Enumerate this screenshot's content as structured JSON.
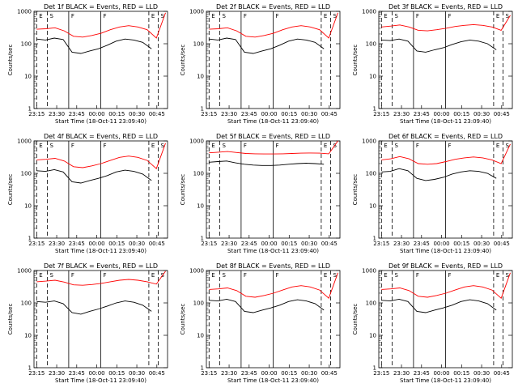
{
  "figure": {
    "xlabel": "Start Time (18-Oct-11 23:09:40)",
    "ylabel": "Counts/sec"
  },
  "chart_data": [
    {
      "type": "line",
      "title": "Det 1f BLACK = Events, RED = LLD",
      "xlabel": "Start Time (18-Oct-11 23:09:40)",
      "ylabel": "Counts/sec",
      "scale_y": "log",
      "ylim": [
        1,
        1000
      ],
      "x_ticks": [
        "23:15",
        "23:30",
        "23:45",
        "00:00",
        "00:15",
        "00:30",
        "00:45"
      ],
      "y_ticks": [
        "1",
        "10",
        "100",
        "1000"
      ],
      "series": [
        {
          "name": "Events",
          "color": "#000000",
          "values": [
            140,
            130,
            150,
            135,
            55,
            50,
            60,
            70,
            90,
            120,
            140,
            130,
            110,
            70
          ]
        },
        {
          "name": "LLD",
          "color": "#ff0000",
          "values": [
            280,
            290,
            310,
            250,
            170,
            160,
            180,
            210,
            270,
            330,
            360,
            330,
            270,
            150,
            900
          ]
        }
      ],
      "markers": [
        {
          "label": "E",
          "style": "dashed"
        },
        {
          "label": "S",
          "style": "dashed"
        },
        {
          "label": "F",
          "style": "solid"
        },
        {
          "label": "F",
          "style": "solid"
        },
        {
          "label": "E",
          "style": "dashed"
        },
        {
          "label": "S",
          "style": "dashed"
        }
      ]
    },
    {
      "type": "line",
      "title": "Det 2f BLACK = Events, RED = LLD",
      "xlabel": "Start Time (18-Oct-11 23:09:40)",
      "ylabel": "Counts/sec",
      "scale_y": "log",
      "ylim": [
        1,
        1000
      ],
      "x_ticks": [
        "23:15",
        "23:30",
        "23:45",
        "00:00",
        "00:15",
        "00:30",
        "00:45"
      ],
      "y_ticks": [
        "1",
        "10",
        "100",
        "1000"
      ],
      "series": [
        {
          "name": "Events",
          "color": "#000000",
          "values": [
            140,
            130,
            150,
            135,
            55,
            50,
            60,
            70,
            90,
            120,
            140,
            130,
            110,
            70
          ]
        },
        {
          "name": "LLD",
          "color": "#ff0000",
          "values": [
            280,
            290,
            310,
            250,
            170,
            160,
            180,
            210,
            270,
            330,
            360,
            330,
            270,
            150,
            900
          ]
        }
      ],
      "markers": [
        {
          "label": "E",
          "style": "dashed"
        },
        {
          "label": "S",
          "style": "dashed"
        },
        {
          "label": "F",
          "style": "solid"
        },
        {
          "label": "F",
          "style": "solid"
        },
        {
          "label": "E",
          "style": "dashed"
        },
        {
          "label": "S",
          "style": "dashed"
        }
      ]
    },
    {
      "type": "line",
      "title": "Det 3f BLACK = Events, RED = LLD",
      "xlabel": "Start Time (18-Oct-11 23:09:40)",
      "ylabel": "Counts/sec",
      "scale_y": "log",
      "ylim": [
        1,
        1000
      ],
      "x_ticks": [
        "23:15",
        "23:30",
        "23:45",
        "00:00",
        "00:15",
        "00:30",
        "00:45"
      ],
      "y_ticks": [
        "1",
        "10",
        "100",
        "1000"
      ],
      "series": [
        {
          "name": "Events",
          "color": "#000000",
          "values": [
            130,
            125,
            140,
            120,
            60,
            55,
            65,
            75,
            95,
            115,
            130,
            120,
            100,
            65
          ]
        },
        {
          "name": "LLD",
          "color": "#ff0000",
          "values": [
            330,
            350,
            380,
            330,
            260,
            250,
            270,
            300,
            340,
            370,
            390,
            370,
            330,
            260,
            750
          ]
        }
      ],
      "markers": [
        {
          "label": "E",
          "style": "dashed"
        },
        {
          "label": "S",
          "style": "dashed"
        },
        {
          "label": "F",
          "style": "solid"
        },
        {
          "label": "F",
          "style": "solid"
        },
        {
          "label": "E",
          "style": "dashed"
        },
        {
          "label": "S",
          "style": "dashed"
        }
      ]
    },
    {
      "type": "line",
      "title": "Det 4f BLACK = Events, RED = LLD",
      "xlabel": "Start Time (18-Oct-11 23:09:40)",
      "ylabel": "Counts/sec",
      "scale_y": "log",
      "ylim": [
        1,
        1000
      ],
      "x_ticks": [
        "23:15",
        "23:30",
        "23:45",
        "00:00",
        "00:15",
        "00:30",
        "00:45"
      ],
      "y_ticks": [
        "1",
        "10",
        "100",
        "1000"
      ],
      "series": [
        {
          "name": "Events",
          "color": "#000000",
          "values": [
            120,
            115,
            130,
            110,
            55,
            50,
            60,
            70,
            85,
            110,
            125,
            115,
            95,
            60
          ]
        },
        {
          "name": "LLD",
          "color": "#ff0000",
          "values": [
            260,
            270,
            290,
            240,
            160,
            150,
            170,
            200,
            250,
            310,
            340,
            310,
            250,
            140,
            850
          ]
        }
      ],
      "markers": [
        {
          "label": "E",
          "style": "dashed"
        },
        {
          "label": "S",
          "style": "dashed"
        },
        {
          "label": "F",
          "style": "solid"
        },
        {
          "label": "F",
          "style": "solid"
        },
        {
          "label": "E",
          "style": "dashed"
        },
        {
          "label": "S",
          "style": "dashed"
        }
      ]
    },
    {
      "type": "line",
      "title": "Det 5f BLACK = Events, RED = LLD",
      "xlabel": "Start Time (18-Oct-11 23:09:40)",
      "ylabel": "Counts/sec",
      "scale_y": "log",
      "ylim": [
        1,
        1000
      ],
      "x_ticks": [
        "23:15",
        "23:30",
        "23:45",
        "00:00",
        "00:15",
        "00:30",
        "00:45"
      ],
      "y_ticks": [
        "1",
        "10",
        "100",
        "1000"
      ],
      "series": [
        {
          "name": "Events",
          "color": "#000000",
          "values": [
            220,
            230,
            240,
            210,
            190,
            180,
            175,
            175,
            180,
            190,
            200,
            205,
            200,
            190
          ]
        },
        {
          "name": "LLD",
          "color": "#ff0000",
          "values": [
            430,
            450,
            470,
            440,
            410,
            400,
            395,
            395,
            400,
            410,
            420,
            425,
            420,
            400,
            1000
          ]
        }
      ],
      "markers": [
        {
          "label": "E",
          "style": "dashed"
        },
        {
          "label": "S",
          "style": "dashed"
        },
        {
          "label": "F",
          "style": "solid"
        },
        {
          "label": "F",
          "style": "solid"
        },
        {
          "label": "E",
          "style": "dashed"
        },
        {
          "label": "S",
          "style": "dashed"
        }
      ]
    },
    {
      "type": "line",
      "title": "Det 6f BLACK = Events, RED = LLD",
      "xlabel": "Start Time (18-Oct-11 23:09:40)",
      "ylabel": "Counts/sec",
      "scale_y": "log",
      "ylim": [
        1,
        1000
      ],
      "x_ticks": [
        "23:15",
        "23:30",
        "23:45",
        "00:00",
        "00:15",
        "00:30",
        "00:45"
      ],
      "y_ticks": [
        "1",
        "10",
        "100",
        "1000"
      ],
      "series": [
        {
          "name": "Events",
          "color": "#000000",
          "values": [
            110,
            115,
            140,
            120,
            70,
            60,
            65,
            75,
            95,
            110,
            120,
            115,
            100,
            70
          ]
        },
        {
          "name": "LLD",
          "color": "#ff0000",
          "values": [
            260,
            280,
            330,
            280,
            200,
            190,
            200,
            230,
            270,
            300,
            320,
            300,
            260,
            200,
            800
          ]
        }
      ],
      "markers": [
        {
          "label": "E",
          "style": "dashed"
        },
        {
          "label": "S",
          "style": "dashed"
        },
        {
          "label": "F",
          "style": "solid"
        },
        {
          "label": "F",
          "style": "solid"
        },
        {
          "label": "E",
          "style": "dashed"
        },
        {
          "label": "S",
          "style": "dashed"
        }
      ]
    },
    {
      "type": "line",
      "title": "Det 7f BLACK = Events, RED = LLD",
      "xlabel": "Start Time (18-Oct-11 23:09:40)",
      "ylabel": "Counts/sec",
      "scale_y": "log",
      "ylim": [
        1,
        1000
      ],
      "x_ticks": [
        "23:15",
        "23:30",
        "23:45",
        "00:00",
        "00:15",
        "00:30",
        "00:45"
      ],
      "y_ticks": [
        "1",
        "10",
        "100",
        "1000"
      ],
      "series": [
        {
          "name": "Events",
          "color": "#000000",
          "values": [
            110,
            105,
            115,
            95,
            50,
            45,
            55,
            65,
            80,
            100,
            115,
            105,
            85,
            55
          ]
        },
        {
          "name": "LLD",
          "color": "#ff0000",
          "values": [
            450,
            470,
            500,
            440,
            360,
            350,
            370,
            400,
            450,
            500,
            530,
            500,
            450,
            380,
            950
          ]
        }
      ],
      "markers": [
        {
          "label": "E",
          "style": "dashed"
        },
        {
          "label": "S",
          "style": "dashed"
        },
        {
          "label": "F",
          "style": "solid"
        },
        {
          "label": "F",
          "style": "solid"
        },
        {
          "label": "E",
          "style": "dashed"
        },
        {
          "label": "S",
          "style": "dashed"
        }
      ]
    },
    {
      "type": "line",
      "title": "Det 8f BLACK = Events, RED = LLD",
      "xlabel": "Start Time (18-Oct-11 23:09:40)",
      "ylabel": "Counts/sec",
      "scale_y": "log",
      "ylim": [
        1,
        1000
      ],
      "x_ticks": [
        "23:15",
        "23:30",
        "23:45",
        "00:00",
        "00:15",
        "00:30",
        "00:45"
      ],
      "y_ticks": [
        "1",
        "10",
        "100",
        "1000"
      ],
      "series": [
        {
          "name": "Events",
          "color": "#000000",
          "values": [
            120,
            115,
            130,
            110,
            55,
            50,
            60,
            70,
            85,
            110,
            125,
            115,
            95,
            60
          ]
        },
        {
          "name": "LLD",
          "color": "#ff0000",
          "values": [
            260,
            270,
            290,
            240,
            160,
            150,
            170,
            200,
            250,
            310,
            340,
            310,
            250,
            140,
            850
          ]
        }
      ],
      "markers": [
        {
          "label": "E",
          "style": "dashed"
        },
        {
          "label": "S",
          "style": "dashed"
        },
        {
          "label": "F",
          "style": "solid"
        },
        {
          "label": "F",
          "style": "solid"
        },
        {
          "label": "E",
          "style": "dashed"
        },
        {
          "label": "S",
          "style": "dashed"
        }
      ]
    },
    {
      "type": "line",
      "title": "Det 9f BLACK = Events, RED = LLD",
      "xlabel": "Start Time (18-Oct-11 23:09:40)",
      "ylabel": "Counts/sec",
      "scale_y": "log",
      "ylim": [
        1,
        1000
      ],
      "x_ticks": [
        "23:15",
        "23:30",
        "23:45",
        "00:00",
        "00:15",
        "00:30",
        "00:45"
      ],
      "y_ticks": [
        "1",
        "10",
        "100",
        "1000"
      ],
      "series": [
        {
          "name": "Events",
          "color": "#000000",
          "values": [
            120,
            115,
            130,
            110,
            55,
            50,
            60,
            70,
            85,
            110,
            125,
            115,
            95,
            60
          ]
        },
        {
          "name": "LLD",
          "color": "#ff0000",
          "values": [
            260,
            270,
            290,
            240,
            160,
            150,
            170,
            200,
            250,
            310,
            340,
            310,
            250,
            140,
            850
          ]
        }
      ],
      "markers": [
        {
          "label": "E",
          "style": "dashed"
        },
        {
          "label": "S",
          "style": "dashed"
        },
        {
          "label": "F",
          "style": "solid"
        },
        {
          "label": "F",
          "style": "solid"
        },
        {
          "label": "E",
          "style": "dashed"
        },
        {
          "label": "S",
          "style": "dashed"
        }
      ]
    }
  ]
}
